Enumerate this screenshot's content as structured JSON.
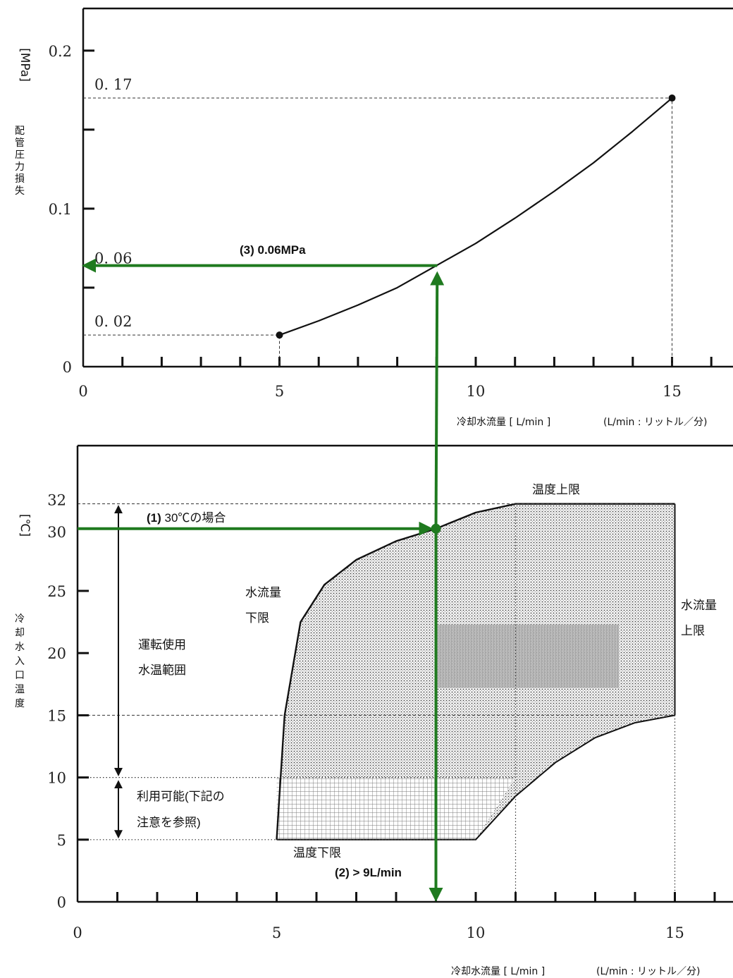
{
  "chart_data": [
    {
      "type": "line",
      "title": "",
      "ylabel": "配管圧力損失",
      "yunit": "[MPa]",
      "xlabel": "冷却水流量 [ L/min ]",
      "xnote": "(L/min : リットル／分)",
      "xlim": [
        0,
        16.5
      ],
      "ylim": [
        0,
        0.22
      ],
      "x_ticks": [
        "0",
        "5",
        "10",
        "15"
      ],
      "y_ticks": [
        "0",
        "0.1",
        "0.2"
      ],
      "ref_labels": [
        "0. 02",
        "0. 06",
        "0. 17"
      ],
      "series": [
        {
          "x": [
            5,
            6,
            7,
            8,
            9,
            10,
            11,
            12,
            13,
            14,
            15
          ],
          "y": [
            0.02,
            0.029,
            0.039,
            0.05,
            0.064,
            0.078,
            0.094,
            0.111,
            0.129,
            0.149,
            0.17
          ]
        }
      ],
      "grid": false,
      "annotations": [
        {
          "text": "(3) 0.06MPa",
          "x": 9,
          "y": 0.064
        }
      ]
    },
    {
      "type": "area",
      "title": "",
      "ylabel": "冷却水入口温度",
      "yunit": "[℃]",
      "xlabel": "冷却水流量 [ L/min ]",
      "xnote": "(L/min : リットル／分)",
      "xlim": [
        0,
        16.5
      ],
      "ylim": [
        0,
        36
      ],
      "x_ticks": [
        "0",
        "5",
        "10",
        "15"
      ],
      "y_ticks": [
        "0",
        "5",
        "10",
        "15",
        "20",
        "25",
        "30",
        "32"
      ],
      "series": [
        {
          "name": "upper-boundary",
          "x": [
            5,
            5.2,
            5.6,
            6.2,
            7,
            8,
            9,
            10,
            11,
            15
          ],
          "y": [
            5,
            15,
            22.5,
            25.5,
            27.5,
            29,
            30,
            31.3,
            32,
            32
          ]
        },
        {
          "name": "lower-boundary",
          "x": [
            5,
            10,
            11,
            12,
            13,
            14,
            15
          ],
          "y": [
            5,
            5,
            8.5,
            11.2,
            13.2,
            14.4,
            15
          ]
        }
      ],
      "grid": false,
      "labels": {
        "temp_upper": "温度上限",
        "temp_lower": "温度下限",
        "flow_lower_1": "水流量",
        "flow_lower_2": "下限",
        "flow_upper_1": "水流量",
        "flow_upper_2": "上限",
        "range_1": "運転使用",
        "range_2": "水温範囲",
        "usable_1": "利用可能(下記の",
        "usable_2": "注意を参照)"
      },
      "annotations": [
        {
          "num": "(1)",
          "text": " 30℃の場合",
          "x": 9,
          "y": 30
        },
        {
          "text": "(2) > 9L/min",
          "x": 9,
          "y": 0
        }
      ],
      "colors": {
        "guide": "#1f7a1f",
        "axis": "#111111"
      }
    }
  ]
}
